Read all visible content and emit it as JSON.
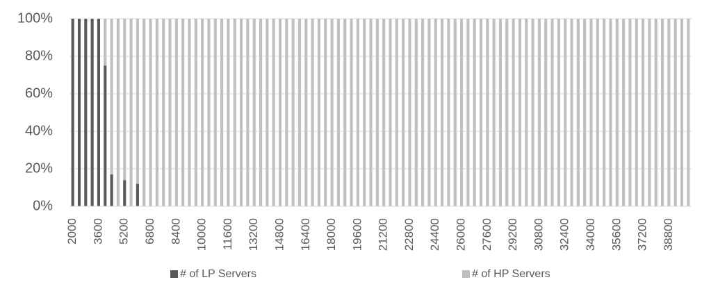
{
  "chart_data": {
    "type": "stacked_bar_100",
    "categories": [
      "2000",
      null,
      null,
      null,
      "3600",
      null,
      null,
      null,
      "5200",
      null,
      null,
      null,
      "6800",
      null,
      null,
      null,
      "8400",
      null,
      null,
      null,
      "10000",
      null,
      null,
      null,
      "11600",
      null,
      null,
      null,
      "13200",
      null,
      null,
      null,
      "14800",
      null,
      null,
      null,
      "16400",
      null,
      null,
      null,
      "18000",
      null,
      null,
      null,
      "19600",
      null,
      null,
      null,
      "21200",
      null,
      null,
      null,
      "22800",
      null,
      null,
      null,
      "24400",
      null,
      null,
      null,
      "26000",
      null,
      null,
      null,
      "27600",
      null,
      null,
      null,
      "29200",
      null,
      null,
      null,
      "30800",
      null,
      null,
      null,
      "32400",
      null,
      null,
      null,
      "34000",
      null,
      null,
      null,
      "35600",
      null,
      null,
      null,
      "37200",
      null,
      null,
      null,
      "38800",
      null,
      null,
      null
    ],
    "series": [
      {
        "name": "# of LP Servers",
        "color": "#595959",
        "values": [
          100,
          100,
          100,
          100,
          100,
          75,
          17,
          0,
          14,
          0,
          12,
          0,
          0,
          0,
          0,
          0,
          0,
          0,
          0,
          0,
          0,
          0,
          0,
          0,
          0,
          0,
          0,
          0,
          0,
          0,
          0,
          0,
          0,
          0,
          0,
          0,
          0,
          0,
          0,
          0,
          0,
          0,
          0,
          0,
          0,
          0,
          0,
          0,
          0,
          0,
          0,
          0,
          0,
          0,
          0,
          0,
          0,
          0,
          0,
          0,
          0,
          0,
          0,
          0,
          0,
          0,
          0,
          0,
          0,
          0,
          0,
          0,
          0,
          0,
          0,
          0,
          0,
          0,
          0,
          0,
          0,
          0,
          0,
          0,
          0,
          0,
          0,
          0,
          0,
          0,
          0,
          0,
          0,
          0,
          0,
          0
        ]
      },
      {
        "name": "# of HP Servers",
        "color": "#bfbfbf",
        "values": [
          0,
          0,
          0,
          0,
          0,
          25,
          83,
          100,
          86,
          100,
          88,
          100,
          100,
          100,
          100,
          100,
          100,
          100,
          100,
          100,
          100,
          100,
          100,
          100,
          100,
          100,
          100,
          100,
          100,
          100,
          100,
          100,
          100,
          100,
          100,
          100,
          100,
          100,
          100,
          100,
          100,
          100,
          100,
          100,
          100,
          100,
          100,
          100,
          100,
          100,
          100,
          100,
          100,
          100,
          100,
          100,
          100,
          100,
          100,
          100,
          100,
          100,
          100,
          100,
          100,
          100,
          100,
          100,
          100,
          100,
          100,
          100,
          100,
          100,
          100,
          100,
          100,
          100,
          100,
          100,
          100,
          100,
          100,
          100,
          100,
          100,
          100,
          100,
          100,
          100,
          100,
          100,
          100,
          100,
          100,
          100
        ]
      }
    ],
    "ylim": [
      0,
      100
    ],
    "yticks": [
      {
        "value": 0,
        "label": "0%"
      },
      {
        "value": 20,
        "label": "20%"
      },
      {
        "value": 40,
        "label": "40%"
      },
      {
        "value": 60,
        "label": "60%"
      },
      {
        "value": 80,
        "label": "80%"
      },
      {
        "value": 100,
        "label": "100%"
      }
    ],
    "grid": true,
    "legend": "bottom"
  }
}
